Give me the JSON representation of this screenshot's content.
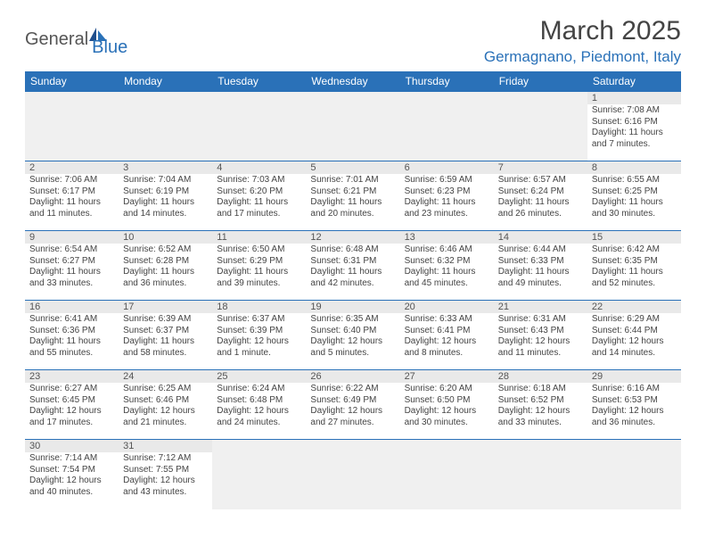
{
  "logo": {
    "main": "General",
    "sub": "Blue"
  },
  "title": "March 2025",
  "location": "Germagnano, Piedmont, Italy",
  "colors": {
    "brand": "#2a71b8",
    "header_bg": "#2a71b8",
    "header_text": "#ffffff",
    "daynum_bg": "#e9e9e9",
    "empty_bg": "#f0f0f0",
    "text": "#444444"
  },
  "day_headers": [
    "Sunday",
    "Monday",
    "Tuesday",
    "Wednesday",
    "Thursday",
    "Friday",
    "Saturday"
  ],
  "weeks": [
    [
      null,
      null,
      null,
      null,
      null,
      null,
      {
        "n": "1",
        "sunrise": "7:08 AM",
        "sunset": "6:16 PM",
        "day_h": "11",
        "day_m": "7"
      }
    ],
    [
      {
        "n": "2",
        "sunrise": "7:06 AM",
        "sunset": "6:17 PM",
        "day_h": "11",
        "day_m": "11"
      },
      {
        "n": "3",
        "sunrise": "7:04 AM",
        "sunset": "6:19 PM",
        "day_h": "11",
        "day_m": "14"
      },
      {
        "n": "4",
        "sunrise": "7:03 AM",
        "sunset": "6:20 PM",
        "day_h": "11",
        "day_m": "17"
      },
      {
        "n": "5",
        "sunrise": "7:01 AM",
        "sunset": "6:21 PM",
        "day_h": "11",
        "day_m": "20"
      },
      {
        "n": "6",
        "sunrise": "6:59 AM",
        "sunset": "6:23 PM",
        "day_h": "11",
        "day_m": "23"
      },
      {
        "n": "7",
        "sunrise": "6:57 AM",
        "sunset": "6:24 PM",
        "day_h": "11",
        "day_m": "26"
      },
      {
        "n": "8",
        "sunrise": "6:55 AM",
        "sunset": "6:25 PM",
        "day_h": "11",
        "day_m": "30"
      }
    ],
    [
      {
        "n": "9",
        "sunrise": "6:54 AM",
        "sunset": "6:27 PM",
        "day_h": "11",
        "day_m": "33"
      },
      {
        "n": "10",
        "sunrise": "6:52 AM",
        "sunset": "6:28 PM",
        "day_h": "11",
        "day_m": "36"
      },
      {
        "n": "11",
        "sunrise": "6:50 AM",
        "sunset": "6:29 PM",
        "day_h": "11",
        "day_m": "39"
      },
      {
        "n": "12",
        "sunrise": "6:48 AM",
        "sunset": "6:31 PM",
        "day_h": "11",
        "day_m": "42"
      },
      {
        "n": "13",
        "sunrise": "6:46 AM",
        "sunset": "6:32 PM",
        "day_h": "11",
        "day_m": "45"
      },
      {
        "n": "14",
        "sunrise": "6:44 AM",
        "sunset": "6:33 PM",
        "day_h": "11",
        "day_m": "49"
      },
      {
        "n": "15",
        "sunrise": "6:42 AM",
        "sunset": "6:35 PM",
        "day_h": "11",
        "day_m": "52"
      }
    ],
    [
      {
        "n": "16",
        "sunrise": "6:41 AM",
        "sunset": "6:36 PM",
        "day_h": "11",
        "day_m": "55"
      },
      {
        "n": "17",
        "sunrise": "6:39 AM",
        "sunset": "6:37 PM",
        "day_h": "11",
        "day_m": "58"
      },
      {
        "n": "18",
        "sunrise": "6:37 AM",
        "sunset": "6:39 PM",
        "day_h": "12",
        "day_m": "1",
        "singular": true
      },
      {
        "n": "19",
        "sunrise": "6:35 AM",
        "sunset": "6:40 PM",
        "day_h": "12",
        "day_m": "5"
      },
      {
        "n": "20",
        "sunrise": "6:33 AM",
        "sunset": "6:41 PM",
        "day_h": "12",
        "day_m": "8"
      },
      {
        "n": "21",
        "sunrise": "6:31 AM",
        "sunset": "6:43 PM",
        "day_h": "12",
        "day_m": "11"
      },
      {
        "n": "22",
        "sunrise": "6:29 AM",
        "sunset": "6:44 PM",
        "day_h": "12",
        "day_m": "14"
      }
    ],
    [
      {
        "n": "23",
        "sunrise": "6:27 AM",
        "sunset": "6:45 PM",
        "day_h": "12",
        "day_m": "17"
      },
      {
        "n": "24",
        "sunrise": "6:25 AM",
        "sunset": "6:46 PM",
        "day_h": "12",
        "day_m": "21"
      },
      {
        "n": "25",
        "sunrise": "6:24 AM",
        "sunset": "6:48 PM",
        "day_h": "12",
        "day_m": "24"
      },
      {
        "n": "26",
        "sunrise": "6:22 AM",
        "sunset": "6:49 PM",
        "day_h": "12",
        "day_m": "27"
      },
      {
        "n": "27",
        "sunrise": "6:20 AM",
        "sunset": "6:50 PM",
        "day_h": "12",
        "day_m": "30"
      },
      {
        "n": "28",
        "sunrise": "6:18 AM",
        "sunset": "6:52 PM",
        "day_h": "12",
        "day_m": "33"
      },
      {
        "n": "29",
        "sunrise": "6:16 AM",
        "sunset": "6:53 PM",
        "day_h": "12",
        "day_m": "36"
      }
    ],
    [
      {
        "n": "30",
        "sunrise": "7:14 AM",
        "sunset": "7:54 PM",
        "day_h": "12",
        "day_m": "40"
      },
      {
        "n": "31",
        "sunrise": "7:12 AM",
        "sunset": "7:55 PM",
        "day_h": "12",
        "day_m": "43"
      },
      null,
      null,
      null,
      null,
      null
    ]
  ],
  "labels": {
    "sunrise": "Sunrise:",
    "sunset": "Sunset:",
    "daylight_prefix": "Daylight:",
    "hours_word": "hours",
    "and_word": "and",
    "minutes_word": "minutes.",
    "minute_word": "minute."
  }
}
